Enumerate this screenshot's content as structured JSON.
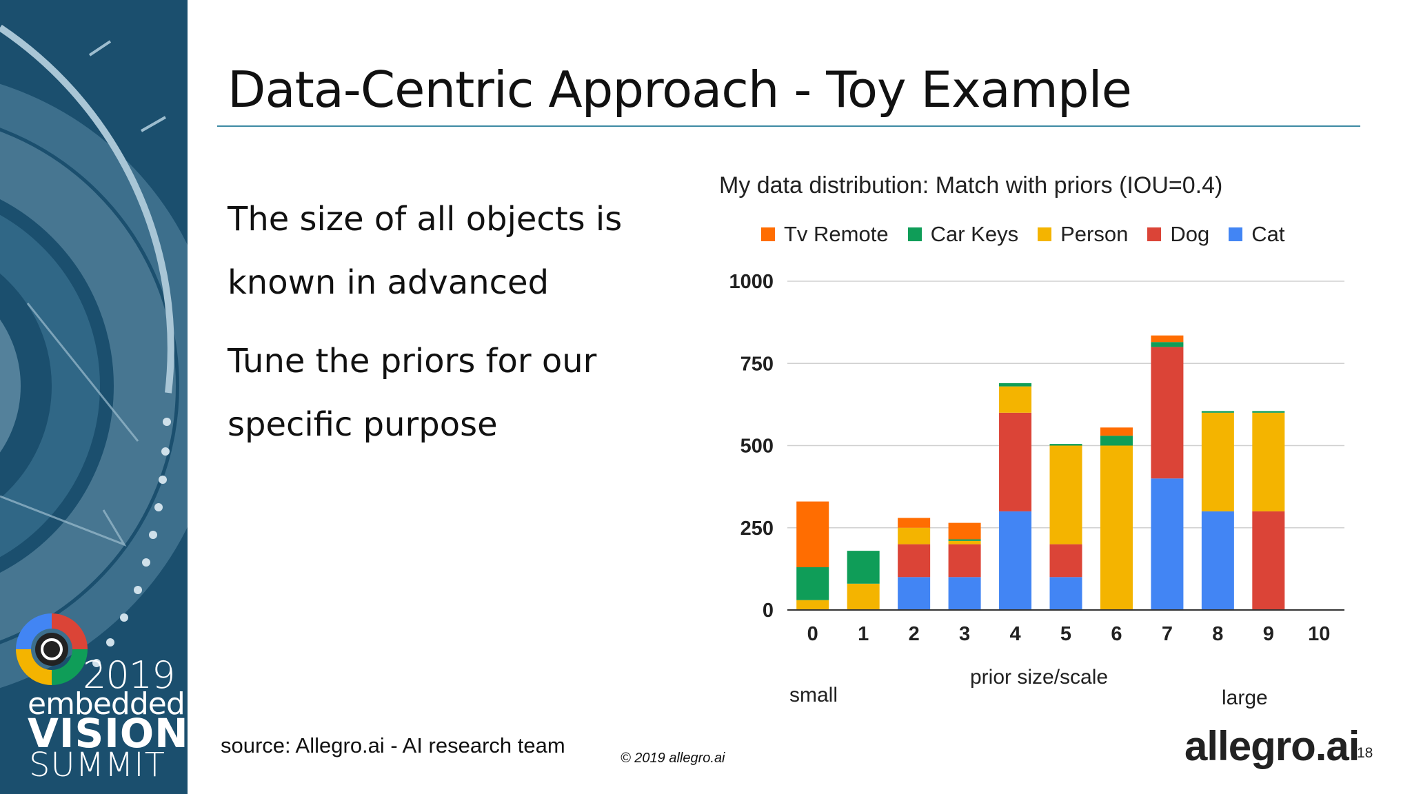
{
  "slide": {
    "title": "Data-Centric Approach - Toy Example",
    "bullets": [
      "The size of all objects is",
      "known in advanced",
      "Tune the priors for our",
      "specific purpose"
    ],
    "source": "source: Allegro.ai - AI research team",
    "copyright": "© 2019 allegro.ai",
    "brand": "allegro.ai",
    "page_number": "18"
  },
  "event_logo": {
    "year": "2019",
    "line1": "embedded",
    "line2": "VISION",
    "line3": "SUMMIT"
  },
  "chart_data": {
    "type": "bar",
    "stacked": true,
    "title": "My data distribution: Match with priors (IOU=0.4)",
    "xlabel": "prior size/scale",
    "annotations": {
      "left": "small",
      "right": "large"
    },
    "categories": [
      "0",
      "1",
      "2",
      "3",
      "4",
      "5",
      "6",
      "7",
      "8",
      "9",
      "10"
    ],
    "series": [
      {
        "name": "Cat",
        "color": "#4285f4",
        "values": [
          0,
          0,
          100,
          100,
          300,
          100,
          0,
          400,
          300,
          0,
          0
        ]
      },
      {
        "name": "Dog",
        "color": "#db4437",
        "values": [
          0,
          0,
          100,
          100,
          300,
          100,
          0,
          400,
          0,
          300,
          0
        ]
      },
      {
        "name": "Person",
        "color": "#f4b400",
        "values": [
          30,
          80,
          50,
          10,
          80,
          300,
          500,
          0,
          300,
          300,
          0
        ]
      },
      {
        "name": "Car Keys",
        "color": "#0f9d58",
        "values": [
          100,
          100,
          0,
          5,
          10,
          5,
          30,
          15,
          5,
          5,
          0
        ]
      },
      {
        "name": "Tv Remote",
        "color": "#ff6d01",
        "values": [
          200,
          0,
          30,
          50,
          0,
          0,
          25,
          20,
          0,
          0,
          0
        ]
      }
    ],
    "legend_order": [
      "Tv Remote",
      "Car Keys",
      "Person",
      "Dog",
      "Cat"
    ],
    "legend_position": "top",
    "yticks": [
      0,
      250,
      500,
      750,
      1000
    ],
    "ylim": [
      0,
      1000
    ],
    "grid": true
  }
}
